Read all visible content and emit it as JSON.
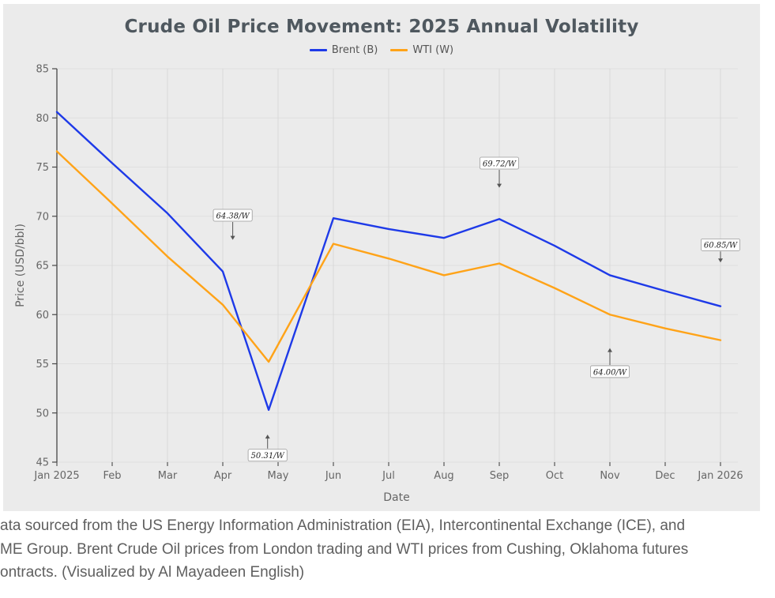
{
  "title": "Crude Oil Price Movement: 2025 Annual Volatility",
  "legend": [
    {
      "label": "Brent (B)",
      "color": "#1E3AE8"
    },
    {
      "label": "WTI (W)",
      "color": "#FFA318"
    }
  ],
  "footer": {
    "lines": [
      "ata sourced from the US Energy Information Administration (EIA), Intercontinental Exchange (ICE), and",
      "ME Group. Brent Crude Oil prices from London trading and WTI prices from Cushing, Oklahoma futures",
      "ontracts. (Visualized by Al Mayadeen English)"
    ]
  },
  "chart_data": {
    "type": "line",
    "title": "Crude Oil Price Movement: 2025 Annual Volatility",
    "xlabel": "Date",
    "ylabel": "Price (USD/bbl)",
    "x_tick_labels": [
      "Jan 2025",
      "Feb",
      "Mar",
      "Apr",
      "May",
      "Jun",
      "Jul",
      "Aug",
      "Sep",
      "Oct",
      "Nov",
      "Dec",
      "Jan 2026"
    ],
    "y_ticks": [
      45,
      50,
      55,
      60,
      65,
      70,
      75,
      80,
      85
    ],
    "ylim": [
      45,
      85
    ],
    "grid": true,
    "legend_position": "top-center",
    "background": "#ebebeb",
    "series": [
      {
        "name": "Brent (B)",
        "color": "#1E3AE8",
        "x": [
          0,
          1,
          2,
          3,
          3.83,
          5,
          6,
          7,
          8,
          9,
          10,
          11,
          12
        ],
        "y": [
          80.6,
          75.4,
          70.3,
          64.38,
          50.31,
          69.8,
          68.7,
          67.8,
          69.72,
          67.0,
          64.0,
          62.4,
          60.85
        ]
      },
      {
        "name": "WTI (W)",
        "color": "#FFA318",
        "x": [
          0,
          1,
          2,
          3,
          3.83,
          5,
          6,
          7,
          8,
          9,
          10,
          11,
          12
        ],
        "y": [
          76.6,
          71.3,
          65.9,
          61.0,
          55.2,
          67.2,
          65.7,
          64.0,
          65.2,
          62.7,
          60.0,
          58.6,
          57.4
        ]
      }
    ],
    "annotations": [
      {
        "label": "64.38/W",
        "x": 3.18,
        "box_y": 70.1,
        "tip_y": 67.6,
        "dir": "down"
      },
      {
        "label": "69.72/W",
        "x": 8.0,
        "box_y": 75.4,
        "tip_y": 72.9,
        "dir": "down"
      },
      {
        "label": "60.85/W",
        "x": 12.0,
        "box_y": 67.1,
        "tip_y": 65.3,
        "dir": "down"
      },
      {
        "label": "50.31/W",
        "x": 3.81,
        "box_y": 45.7,
        "tip_y": 47.8,
        "dir": "up"
      },
      {
        "label": "64.00/W",
        "x": 10.0,
        "box_y": 54.2,
        "tip_y": 56.6,
        "dir": "up"
      }
    ]
  }
}
